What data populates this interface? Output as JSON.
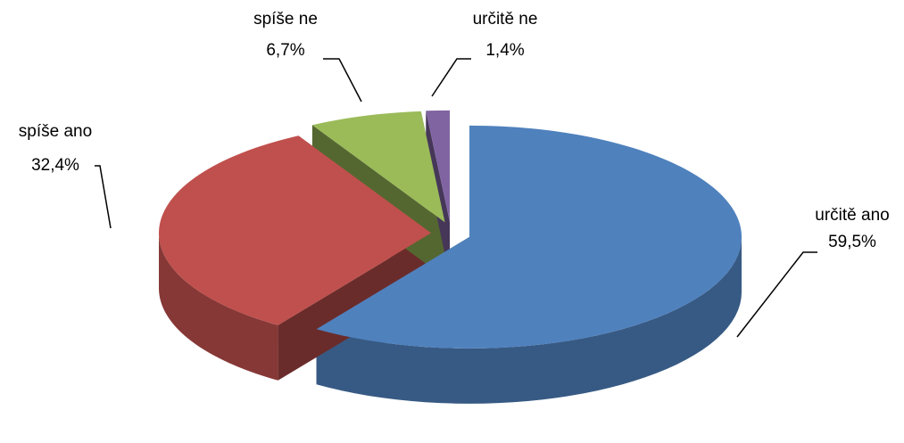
{
  "chart_data": {
    "type": "pie",
    "categories": [
      "určitě ano",
      "spíše ano",
      "spíše ne",
      "určitě ne"
    ],
    "values": [
      59.5,
      32.4,
      6.7,
      1.4
    ],
    "value_labels": [
      "59,5%",
      "32,4%",
      "6,7%",
      "1,4%"
    ],
    "colors": [
      "#4f81bd",
      "#c0504d",
      "#9bbb59",
      "#8064a2"
    ]
  }
}
